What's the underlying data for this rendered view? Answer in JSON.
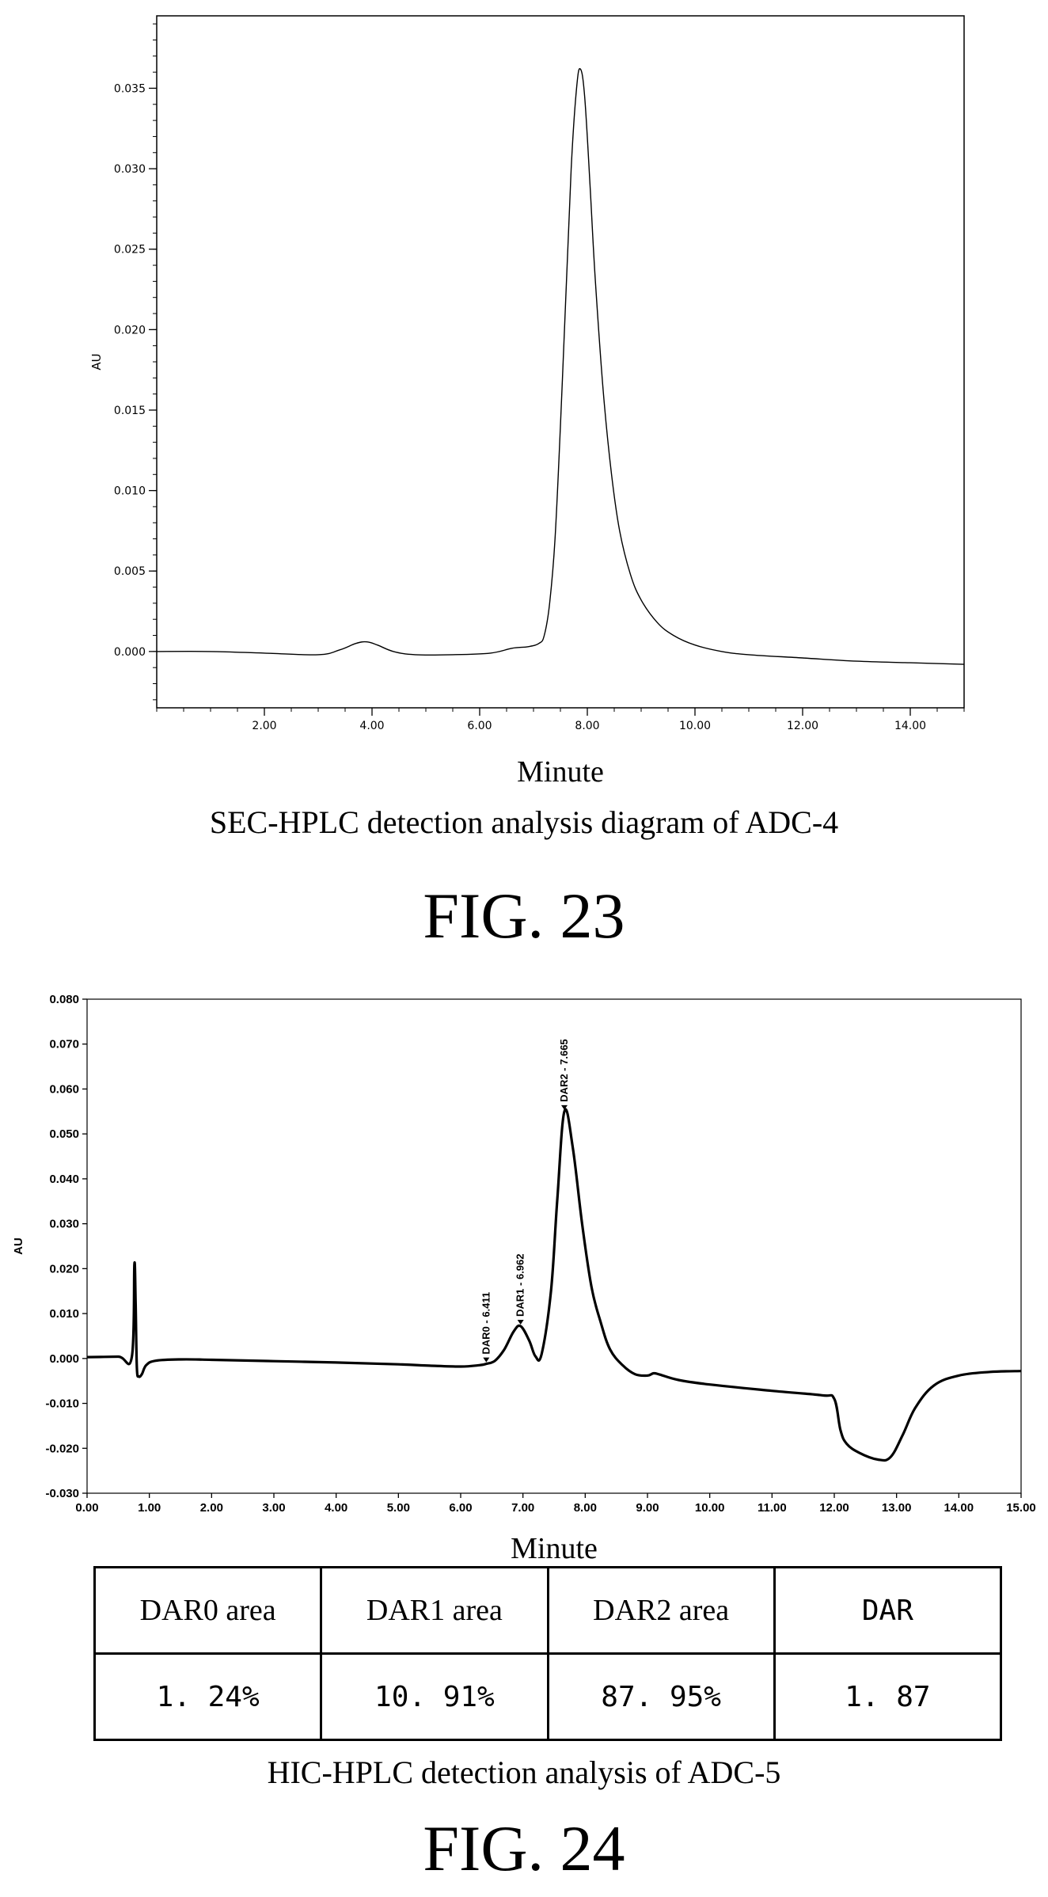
{
  "figures": [
    {
      "fig_label": "FIG. 23",
      "caption": "SEC-HPLC detection analysis diagram of ADC-4"
    },
    {
      "fig_label": "FIG. 24",
      "caption": "HIC-HPLC detection analysis of ADC-5",
      "table": {
        "headers": [
          "DAR0 area",
          "DAR1 area",
          "DAR2 area",
          "DAR"
        ],
        "values": [
          "1. 24%",
          "10. 91%",
          "87. 95%",
          "1. 87"
        ]
      }
    }
  ],
  "chart_data": [
    {
      "type": "line",
      "xlabel": "Minute",
      "ylabel": "AU",
      "xlim": [
        0,
        15
      ],
      "ylim": [
        -0.0035,
        0.0395
      ],
      "x_ticks": [
        "2.00",
        "4.00",
        "6.00",
        "8.00",
        "10.00",
        "12.00",
        "14.00"
      ],
      "y_ticks": [
        "0.000",
        "0.005",
        "0.010",
        "0.015",
        "0.020",
        "0.025",
        "0.030",
        "0.035"
      ],
      "series": [
        {
          "x": [
            0.0,
            1.0,
            2.0,
            3.0,
            3.4,
            3.7,
            3.9,
            4.1,
            4.4,
            4.8,
            5.5,
            6.2,
            6.6,
            6.9,
            7.1,
            7.2,
            7.3,
            7.4,
            7.5,
            7.6,
            7.7,
            7.8,
            7.87,
            7.95,
            8.05,
            8.15,
            8.3,
            8.45,
            8.6,
            8.8,
            9.0,
            9.3,
            9.6,
            10.0,
            10.5,
            11.0,
            12.0,
            13.0,
            14.0,
            15.0
          ],
          "y": [
            0.0,
            0.0,
            -0.0001,
            -0.0002,
            0.0001,
            0.0005,
            0.0006,
            0.0004,
            0.0,
            -0.0002,
            -0.0002,
            -0.0001,
            0.0002,
            0.0003,
            0.0005,
            0.001,
            0.003,
            0.007,
            0.014,
            0.022,
            0.03,
            0.035,
            0.0362,
            0.0345,
            0.029,
            0.023,
            0.016,
            0.011,
            0.0075,
            0.0048,
            0.0032,
            0.0018,
            0.001,
            0.0004,
            0.0,
            -0.0002,
            -0.0004,
            -0.0006,
            -0.0007,
            -0.0008
          ]
        }
      ]
    },
    {
      "type": "line",
      "xlabel": "Minute",
      "ylabel": "AU",
      "xlim": [
        0,
        15
      ],
      "ylim": [
        -0.03,
        0.08
      ],
      "x_ticks": [
        "0.00",
        "1.00",
        "2.00",
        "3.00",
        "4.00",
        "5.00",
        "6.00",
        "7.00",
        "8.00",
        "9.00",
        "10.00",
        "11.00",
        "12.00",
        "13.00",
        "14.00",
        "15.00"
      ],
      "y_ticks": [
        "-0.030",
        "-0.020",
        "-0.010",
        "0.000",
        "0.010",
        "0.020",
        "0.030",
        "0.040",
        "0.050",
        "0.060",
        "0.070",
        "0.080"
      ],
      "peaks": [
        {
          "label": "DAR0 - 6.411",
          "x": 6.411,
          "y": -0.0012
        },
        {
          "label": "DAR1 - 6.962",
          "x": 6.962,
          "y": 0.0072
        },
        {
          "label": "DAR2 - 7.665",
          "x": 7.665,
          "y": 0.055
        }
      ],
      "series": [
        {
          "x": [
            0.0,
            0.5,
            0.72,
            0.76,
            0.78,
            0.8,
            0.83,
            0.88,
            0.95,
            1.1,
            1.5,
            2.0,
            3.0,
            4.0,
            5.0,
            5.5,
            6.0,
            6.3,
            6.411,
            6.55,
            6.7,
            6.85,
            6.962,
            7.1,
            7.2,
            7.3,
            7.45,
            7.55,
            7.665,
            7.8,
            7.95,
            8.1,
            8.25,
            8.4,
            8.6,
            8.8,
            9.0,
            9.1,
            9.2,
            9.5,
            10.0,
            11.0,
            11.8,
            12.0,
            12.1,
            12.2,
            12.4,
            12.7,
            12.9,
            13.1,
            13.3,
            13.6,
            14.0,
            14.5,
            15.0
          ],
          "y": [
            0.0003,
            0.0004,
            0.0004,
            0.021,
            0.012,
            -0.002,
            -0.004,
            -0.0035,
            -0.0015,
            -0.0005,
            -0.0002,
            -0.0003,
            -0.0006,
            -0.0009,
            -0.0013,
            -0.0016,
            -0.0018,
            -0.0015,
            -0.0012,
            -0.0005,
            0.002,
            0.006,
            0.0072,
            0.004,
            0.0005,
            0.001,
            0.015,
            0.035,
            0.055,
            0.047,
            0.03,
            0.016,
            0.008,
            0.002,
            -0.0015,
            -0.0035,
            -0.0038,
            -0.0033,
            -0.0036,
            -0.0048,
            -0.0058,
            -0.0072,
            -0.0082,
            -0.009,
            -0.016,
            -0.019,
            -0.021,
            -0.0225,
            -0.022,
            -0.017,
            -0.011,
            -0.006,
            -0.0038,
            -0.003,
            -0.0028
          ]
        }
      ]
    }
  ]
}
